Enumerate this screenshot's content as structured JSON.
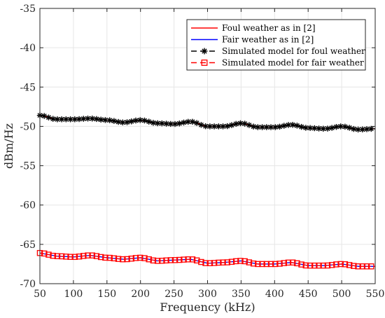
{
  "chart_data": {
    "type": "line",
    "xlabel": "Frequency (kHz)",
    "ylabel": "dBm/Hz",
    "xlim": [
      50,
      550
    ],
    "ylim": [
      -70,
      -35
    ],
    "xticks": [
      "50",
      "100",
      "150",
      "200",
      "250",
      "300",
      "350",
      "400",
      "450",
      "500",
      "550"
    ],
    "yticks": [
      "-35",
      "-40",
      "-45",
      "-50",
      "-55",
      "-60",
      "-65",
      "-70"
    ],
    "grid": true,
    "legend_position": "top-right",
    "series": [
      {
        "name": "Foul weather as in [2]",
        "color": "#ff0000",
        "style": "solid",
        "marker": "none",
        "x": [
          50,
          75,
          100,
          125,
          150,
          175,
          200,
          225,
          250,
          275,
          300,
          325,
          350,
          375,
          400,
          425,
          450,
          475,
          500,
          525,
          550
        ],
        "values": [
          -48.6,
          -49.1,
          -49.1,
          -49.0,
          -49.2,
          -49.5,
          -49.2,
          -49.6,
          -49.7,
          -49.4,
          -50.0,
          -50.0,
          -49.6,
          -50.1,
          -50.1,
          -49.8,
          -50.2,
          -50.3,
          -50.0,
          -50.4,
          -50.3
        ]
      },
      {
        "name": "Fair weather as in [2]",
        "color": "#0000ff",
        "style": "solid",
        "marker": "none",
        "x": [
          50,
          75,
          100,
          125,
          150,
          175,
          200,
          225,
          250,
          275,
          300,
          325,
          350,
          375,
          400,
          425,
          450,
          475,
          500,
          525,
          550
        ],
        "values": [
          -66.1,
          -66.5,
          -66.6,
          -66.4,
          -66.7,
          -66.9,
          -66.7,
          -67.1,
          -67.0,
          -66.9,
          -67.4,
          -67.3,
          -67.1,
          -67.5,
          -67.5,
          -67.3,
          -67.7,
          -67.7,
          -67.5,
          -67.8,
          -67.8
        ]
      },
      {
        "name": "Simulated model for foul weather",
        "color": "#000000",
        "style": "dashed",
        "marker": "asterisk",
        "x": [
          50,
          75,
          100,
          125,
          150,
          175,
          200,
          225,
          250,
          275,
          300,
          325,
          350,
          375,
          400,
          425,
          450,
          475,
          500,
          525,
          550
        ],
        "values": [
          -48.6,
          -49.1,
          -49.1,
          -49.0,
          -49.2,
          -49.5,
          -49.2,
          -49.6,
          -49.7,
          -49.4,
          -50.0,
          -50.0,
          -49.6,
          -50.1,
          -50.1,
          -49.8,
          -50.2,
          -50.3,
          -50.0,
          -50.4,
          -50.3
        ]
      },
      {
        "name": "Simulated model for fair weather",
        "color": "#ff0000",
        "style": "dashed",
        "marker": "square",
        "x": [
          50,
          75,
          100,
          125,
          150,
          175,
          200,
          225,
          250,
          275,
          300,
          325,
          350,
          375,
          400,
          425,
          450,
          475,
          500,
          525,
          550
        ],
        "values": [
          -66.1,
          -66.5,
          -66.6,
          -66.4,
          -66.7,
          -66.9,
          -66.7,
          -67.1,
          -67.0,
          -66.9,
          -67.4,
          -67.3,
          -67.1,
          -67.5,
          -67.5,
          -67.3,
          -67.7,
          -67.7,
          -67.5,
          -67.8,
          -67.8
        ]
      }
    ]
  }
}
